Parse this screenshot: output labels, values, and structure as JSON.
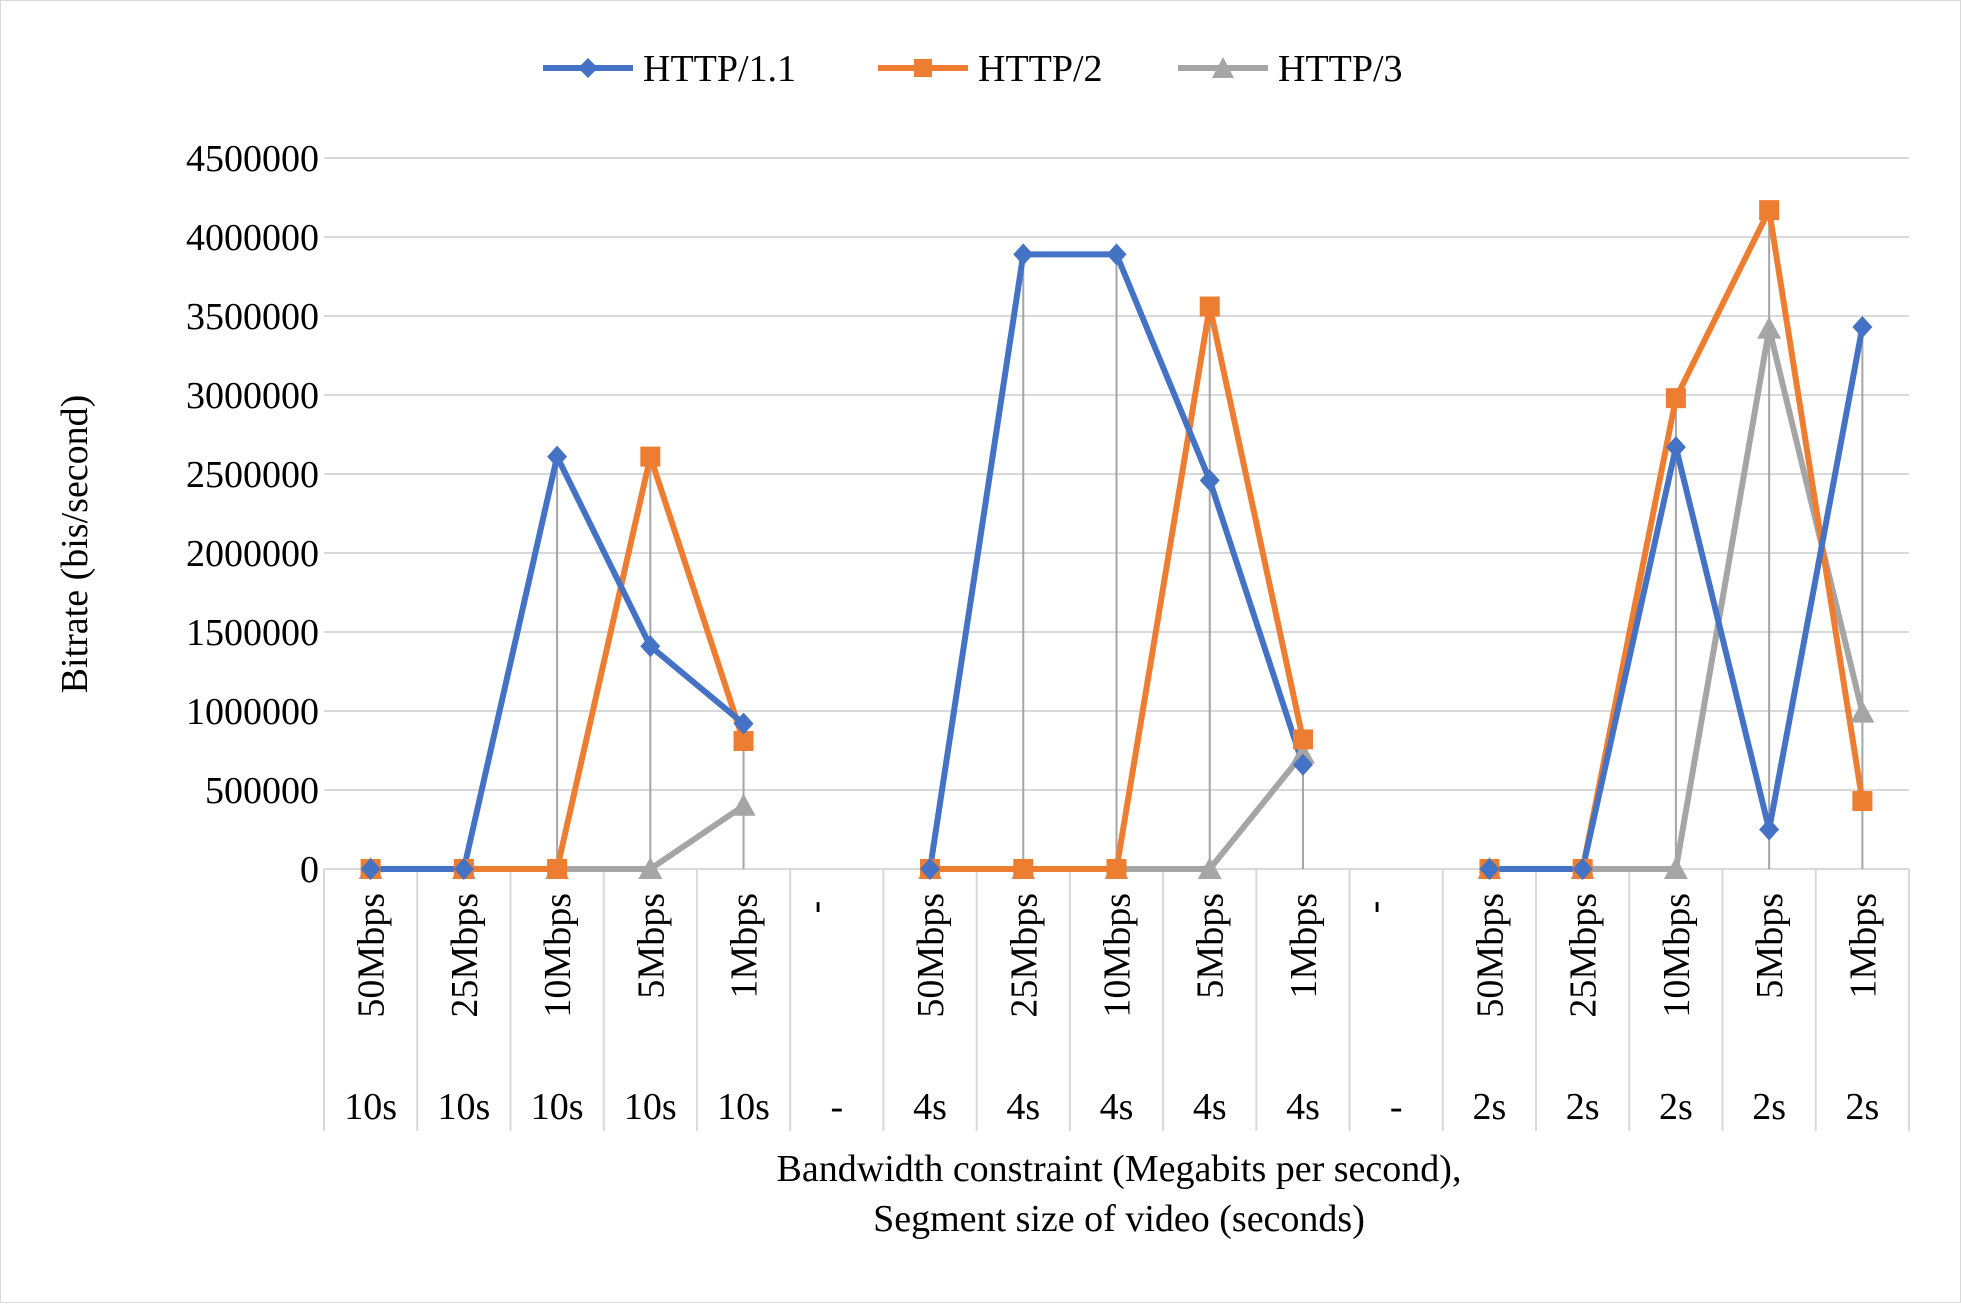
{
  "chart_data": {
    "type": "line",
    "title": "",
    "xlabel": "Bandwidth constraint (Megabits per second), Segment size of video (seconds)",
    "xlabel_lines": [
      "Bandwidth constraint (Megabits per second),",
      "Segment size of video (seconds)"
    ],
    "ylabel": "Bitrate (bis/second)",
    "ylim": [
      0,
      4500000
    ],
    "y_ticks": [
      "0",
      "500000",
      "1000000",
      "1500000",
      "2000000",
      "2500000",
      "3000000",
      "3500000",
      "4000000",
      "4500000"
    ],
    "grid": true,
    "legend_position": "top",
    "drop_lines": true,
    "categories_bandwidth": [
      "50Mbps",
      "25Mbps",
      "10Mbps",
      "5Mbps",
      "1Mbps",
      "-",
      "50Mbps",
      "25Mbps",
      "10Mbps",
      "5Mbps",
      "1Mbps",
      "-",
      "50Mbps",
      "25Mbps",
      "10Mbps",
      "5Mbps",
      "1Mbps"
    ],
    "categories_segment": [
      "10s",
      "10s",
      "10s",
      "10s",
      "10s",
      "-",
      "4s",
      "4s",
      "4s",
      "4s",
      "4s",
      "-",
      "2s",
      "2s",
      "2s",
      "2s",
      "2s"
    ],
    "series": [
      {
        "name": "HTTP/1.1",
        "color": "#4472c4",
        "marker": "diamond",
        "values": [
          0,
          0,
          2610000,
          1410000,
          920000,
          null,
          0,
          3890000,
          3890000,
          2460000,
          660000,
          null,
          0,
          0,
          2670000,
          250000,
          3430000
        ]
      },
      {
        "name": "HTTP/2",
        "color": "#ed7d31",
        "marker": "square",
        "values": [
          0,
          0,
          0,
          2610000,
          810000,
          null,
          0,
          0,
          0,
          3560000,
          820000,
          null,
          0,
          0,
          2980000,
          4170000,
          430000
        ]
      },
      {
        "name": "HTTP/3",
        "color": "#a5a5a5",
        "marker": "triangle",
        "values": [
          0,
          0,
          0,
          0,
          400000,
          null,
          0,
          0,
          0,
          0,
          730000,
          null,
          0,
          0,
          0,
          3420000,
          990000
        ]
      }
    ]
  }
}
